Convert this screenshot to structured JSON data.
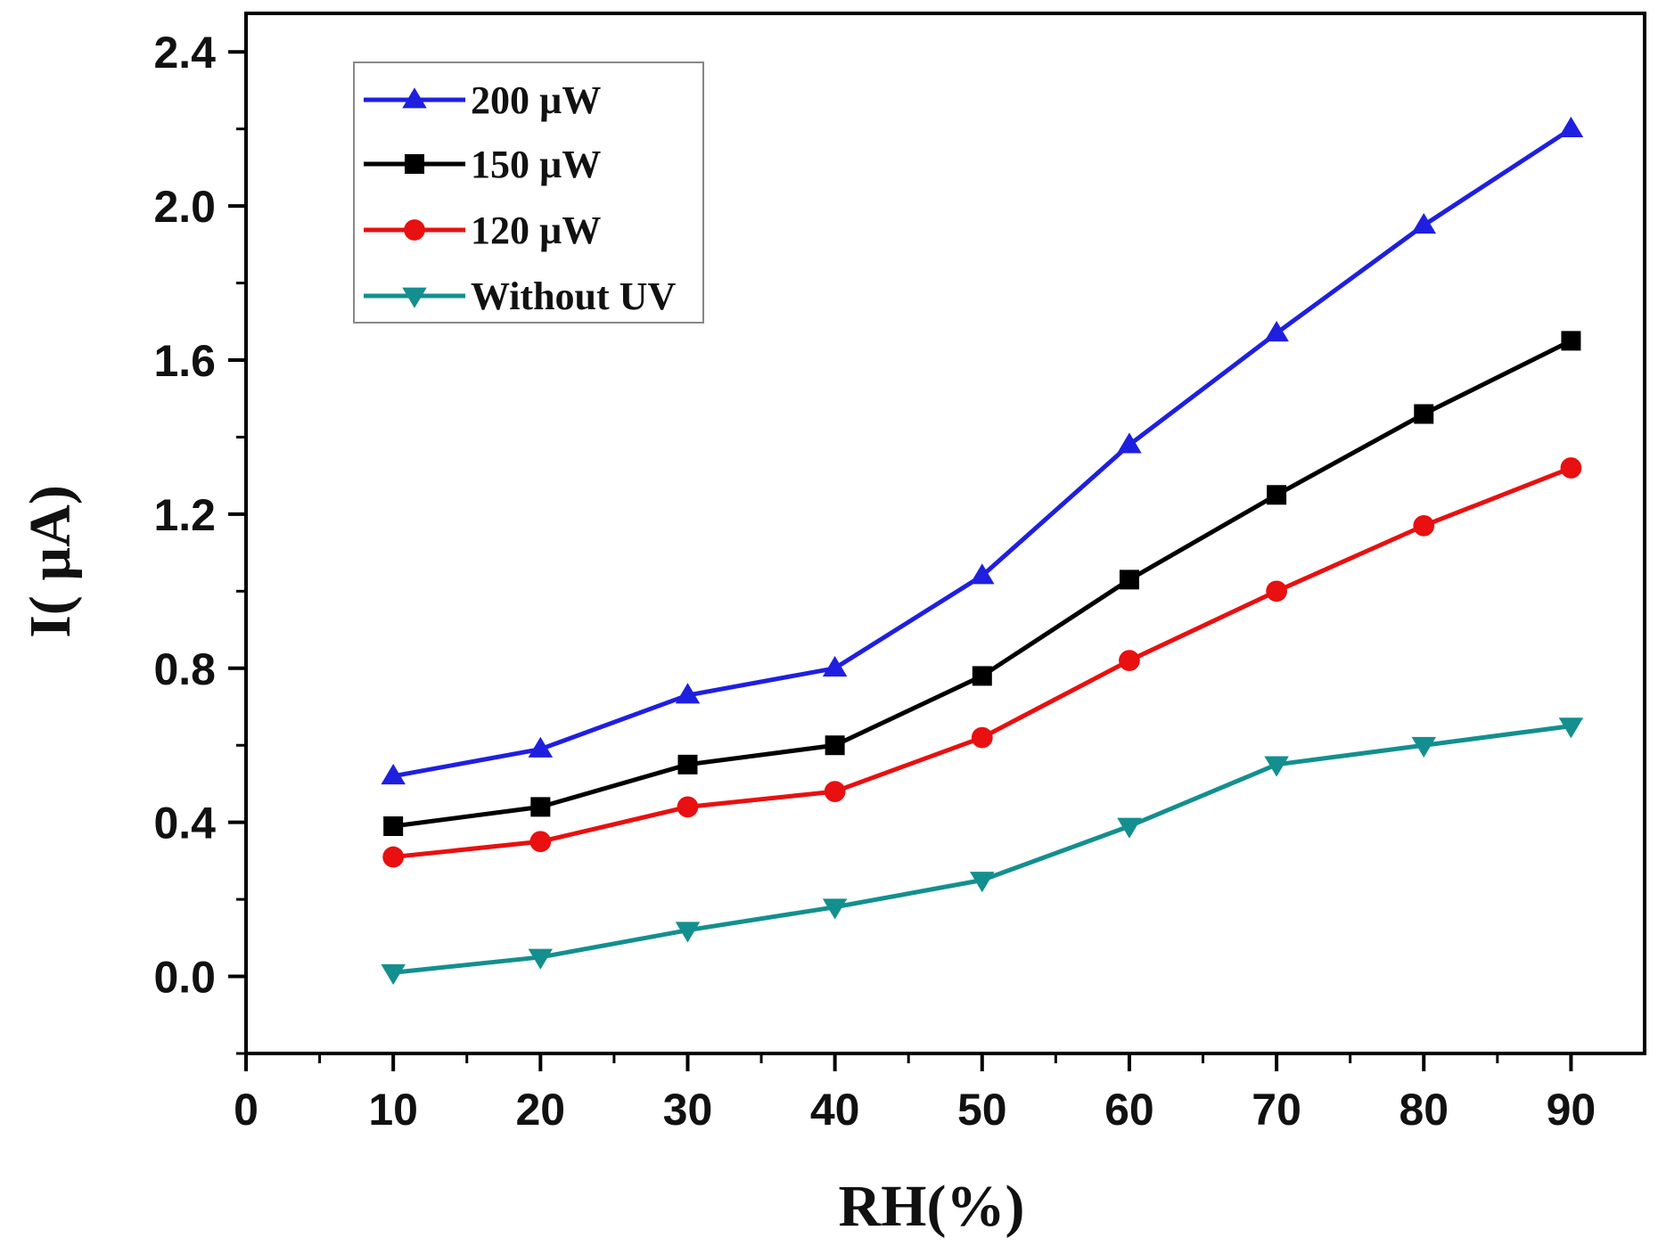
{
  "chart_data": {
    "type": "line",
    "title": "",
    "xlabel": "RH(%)",
    "ylabel": "I( µA)",
    "xlim": [
      0,
      95
    ],
    "ylim": [
      -0.2,
      2.5
    ],
    "x_ticks": [
      0,
      10,
      20,
      30,
      40,
      50,
      60,
      70,
      80,
      90
    ],
    "y_ticks": [
      0.0,
      0.4,
      0.8,
      1.2,
      1.6,
      2.0,
      2.4
    ],
    "x_tick_labels": [
      "0",
      "10",
      "20",
      "30",
      "40",
      "50",
      "60",
      "70",
      "80",
      "90"
    ],
    "y_tick_labels": [
      "0.0",
      "0.4",
      "0.8",
      "1.2",
      "1.6",
      "2.0",
      "2.4"
    ],
    "grid": false,
    "legend_position": "top-left",
    "x": [
      10,
      20,
      30,
      40,
      50,
      60,
      70,
      80,
      90
    ],
    "series": [
      {
        "name": "200 µW",
        "color": "#1f1fe0",
        "marker": "triangle-up",
        "values": [
          0.52,
          0.59,
          0.73,
          0.8,
          1.04,
          1.38,
          1.67,
          1.95,
          2.2
        ]
      },
      {
        "name": "150 µW",
        "color": "#000000",
        "marker": "square",
        "values": [
          0.39,
          0.44,
          0.55,
          0.6,
          0.78,
          1.03,
          1.25,
          1.46,
          1.65
        ]
      },
      {
        "name": "120 µW",
        "color": "#e81010",
        "marker": "circle",
        "values": [
          0.31,
          0.35,
          0.44,
          0.48,
          0.62,
          0.82,
          1.0,
          1.17,
          1.32
        ]
      },
      {
        "name": "Without UV",
        "color": "#138f8f",
        "marker": "triangle-down",
        "values": [
          0.01,
          0.05,
          0.12,
          0.18,
          0.25,
          0.39,
          0.55,
          0.6,
          0.65
        ]
      }
    ]
  }
}
